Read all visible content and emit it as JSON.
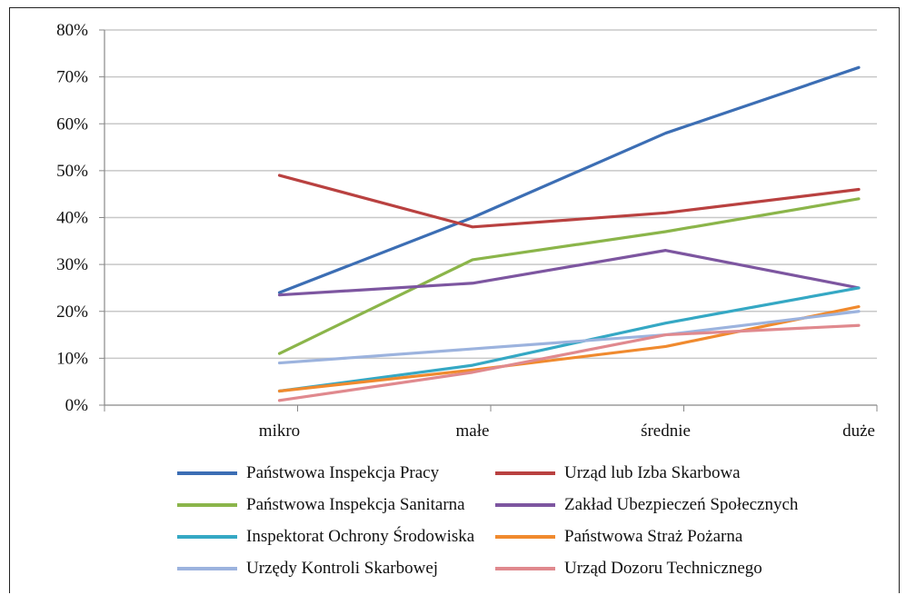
{
  "chart_data": {
    "type": "line",
    "categories": [
      "mikro",
      "małe",
      "średnie",
      "duże"
    ],
    "ylim": [
      0,
      80
    ],
    "yticks": [
      "0%",
      "10%",
      "20%",
      "30%",
      "40%",
      "50%",
      "60%",
      "70%",
      "80%"
    ],
    "grid": true,
    "legend_position": "bottom",
    "series": [
      {
        "name": "Państwowa Inspekcja Pracy",
        "color": "#3c6eb4",
        "values": [
          24,
          40,
          58,
          72
        ]
      },
      {
        "name": "Urząd lub Izba Skarbowa",
        "color": "#b94140",
        "values": [
          49,
          38,
          41,
          46
        ]
      },
      {
        "name": "Państwowa Inspekcja Sanitarna",
        "color": "#8bb54a",
        "values": [
          11,
          31,
          37,
          44
        ]
      },
      {
        "name": "Zakład Ubezpieczeń Społecznych",
        "color": "#7d56a0",
        "values": [
          23.5,
          26,
          33,
          25
        ]
      },
      {
        "name": "Inspektorat Ochrony Środowiska",
        "color": "#35a8c4",
        "values": [
          3,
          8.5,
          17.5,
          25
        ]
      },
      {
        "name": "Państwowa Straż Pożarna",
        "color": "#f08a2e",
        "values": [
          3,
          7.5,
          12.5,
          21
        ]
      },
      {
        "name": "Urzędy Kontroli Skarbowej",
        "color": "#9cb3de",
        "values": [
          9,
          12,
          15,
          20
        ]
      },
      {
        "name": "Urząd Dozoru Technicznego",
        "color": "#e0898e",
        "values": [
          1,
          7,
          15,
          17
        ]
      }
    ]
  }
}
